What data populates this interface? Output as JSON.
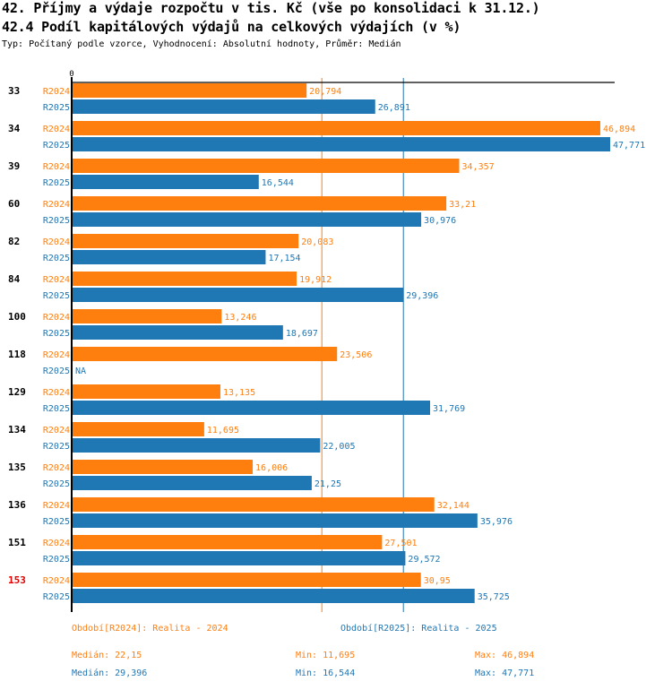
{
  "header": {
    "title": "42. Příjmy a výdaje rozpočtu v tis. Kč (vše po konsolidaci k 31.12.)",
    "subtitle": "42.4 Podíl kapitálových výdajů na celkových výdajích (v %)",
    "meta": "Typ: Počítaný podle vzorce, Vyhodnocení: Absolutní hodnoty, Průměr: Medián"
  },
  "colors": {
    "r2024": "#ff7f0e",
    "r2025": "#1f77b4",
    "highlight": "#e00000"
  },
  "chart_data": {
    "type": "bar",
    "orientation": "horizontal",
    "title": "42.4 Podíl kapitálových výdajů na celkových výdajích (v %)",
    "xlabel": "",
    "ylabel": "",
    "x_tick_labels": [
      "0"
    ],
    "xlim": [
      0,
      47.771
    ],
    "categories": [
      "33",
      "34",
      "39",
      "60",
      "82",
      "84",
      "100",
      "118",
      "129",
      "134",
      "135",
      "136",
      "151",
      "153"
    ],
    "highlighted_category": "153",
    "series": [
      {
        "name": "R2024",
        "values": [
          20.794,
          46.894,
          34.357,
          33.21,
          20.083,
          19.912,
          13.246,
          23.506,
          13.135,
          11.695,
          16.006,
          32.144,
          27.501,
          30.95
        ],
        "labels": [
          "20,794",
          "46,894",
          "34,357",
          "33,21",
          "20,083",
          "19,912",
          "13,246",
          "23,506",
          "13,135",
          "11,695",
          "16,006",
          "32,144",
          "27,501",
          "30,95"
        ]
      },
      {
        "name": "R2025",
        "values": [
          26.891,
          47.771,
          16.544,
          30.976,
          17.154,
          29.396,
          18.697,
          null,
          31.769,
          22.005,
          21.25,
          35.976,
          29.572,
          35.725
        ],
        "labels": [
          "26,891",
          "47,771",
          "16,544",
          "30,976",
          "17,154",
          "29,396",
          "18,697",
          "NA",
          "31,769",
          "22,005",
          "21,25",
          "35,976",
          "29,572",
          "35,725"
        ]
      }
    ],
    "reference_lines": [
      {
        "series": "R2024",
        "type": "median",
        "value": 22.15
      },
      {
        "series": "R2025",
        "type": "median",
        "value": 29.396
      }
    ],
    "grid": false
  },
  "footer": {
    "legend_r2024": "Období[R2024]: Realita - 2024",
    "legend_r2025": "Období[R2025]: Realita - 2025",
    "r2024": {
      "median": "Medián: 22,15",
      "min": "Min: 11,695",
      "max": "Max: 46,894"
    },
    "r2025": {
      "median": "Medián: 29,396",
      "min": "Min: 16,544",
      "max": "Max: 47,771"
    }
  }
}
